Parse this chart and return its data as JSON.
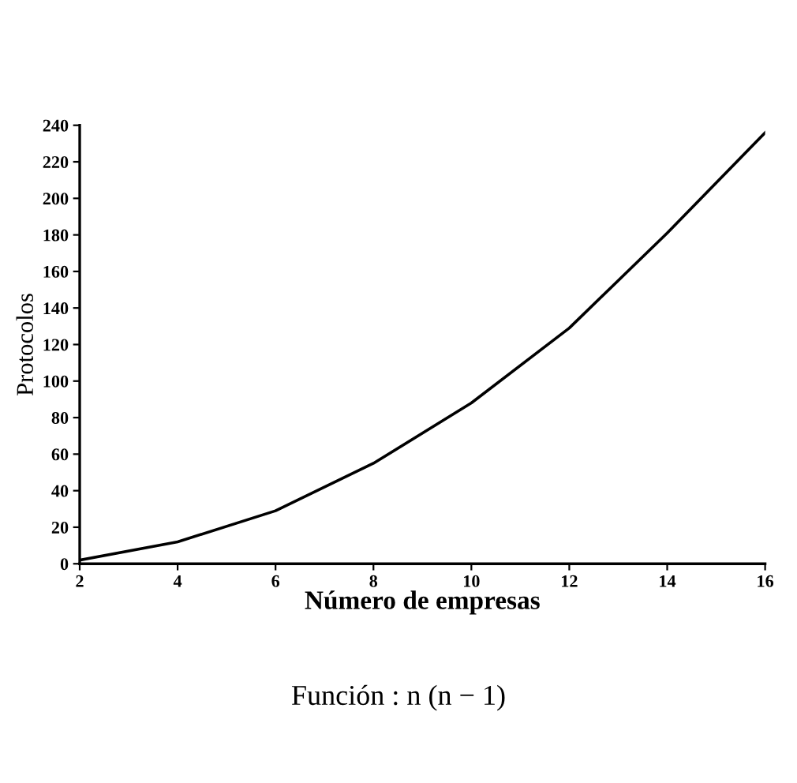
{
  "chart_data": {
    "type": "line",
    "xlabel": "Número de empresas",
    "ylabel": "Protocolos",
    "annotations": [
      "Función : n (n − 1)"
    ],
    "x": [
      2,
      4,
      6,
      8,
      10,
      12,
      14,
      16
    ],
    "series": [
      {
        "color": "#000000",
        "values": [
          2,
          12,
          29,
          55,
          88,
          129,
          181,
          236
        ]
      }
    ],
    "xlim": [
      2,
      16
    ],
    "xticks": [
      2,
      4,
      6,
      8,
      10,
      12,
      14,
      16
    ],
    "ylim": [
      0,
      240
    ],
    "yticks": [
      0,
      20,
      40,
      60,
      80,
      100,
      120,
      140,
      160,
      180,
      200,
      220,
      240
    ],
    "grid": false,
    "legend": false,
    "marker": "none",
    "line_style": "solid"
  }
}
